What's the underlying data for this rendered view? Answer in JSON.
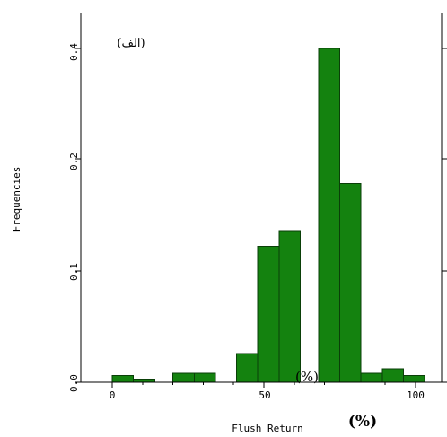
{
  "chart_data": {
    "type": "bar",
    "title": "",
    "panel_label": "(الف)",
    "xlabel": "Flush Return",
    "xlabel_unit": "(%)",
    "ylabel": "Frequencies",
    "overlay_unit": "(%)",
    "x_ticks": [
      "0",
      "50",
      "100"
    ],
    "y_ticks": [
      "0.0",
      "0.1",
      "0.2",
      "0.4"
    ],
    "bars": [
      {
        "x_start": 0,
        "x_end": 7,
        "value": 0.006
      },
      {
        "x_start": 7,
        "x_end": 14,
        "value": 0.003
      },
      {
        "x_start": 20,
        "x_end": 27,
        "value": 0.008
      },
      {
        "x_start": 27,
        "x_end": 34,
        "value": 0.008
      },
      {
        "x_start": 41,
        "x_end": 48,
        "value": 0.026
      },
      {
        "x_start": 48,
        "x_end": 55,
        "value": 0.122
      },
      {
        "x_start": 55,
        "x_end": 62,
        "value": 0.136
      },
      {
        "x_start": 68,
        "x_end": 75,
        "value": 0.4
      },
      {
        "x_start": 75,
        "x_end": 82,
        "value": 0.178
      },
      {
        "x_start": 82,
        "x_end": 89,
        "value": 0.008
      },
      {
        "x_start": 89,
        "x_end": 96,
        "value": 0.012
      },
      {
        "x_start": 96,
        "x_end": 103,
        "value": 0.006
      }
    ],
    "xlim": [
      -10,
      110
    ],
    "ylim": [
      0,
      0.42
    ],
    "y_axis_note": "Tick labels are non-linear; values are read by tick position.",
    "grid": false,
    "colors": {
      "bar_fill": "#14820f",
      "bar_edge": "#0a3f08",
      "axes": "#000000"
    }
  }
}
